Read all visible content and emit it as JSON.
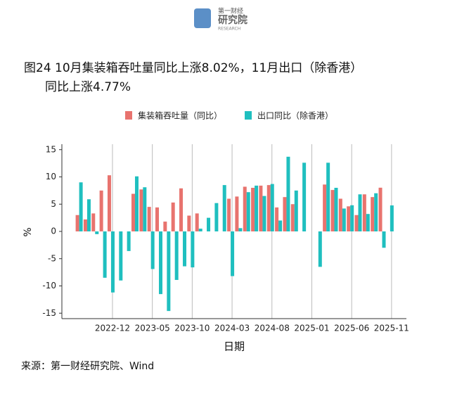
{
  "header": {
    "brand": "第一财经",
    "name": "研究院",
    "sub": "RESEARCH"
  },
  "chart_data": {
    "type": "bar",
    "title": "图24 10月集装箱吞吐量同比上涨8.02%，11月出口（除香港）",
    "title_line2": "同比上涨4.77%",
    "x_label": "日期",
    "y_label": "%",
    "source": "来源：第一财经研究院、Wind",
    "categories": [
      null,
      null,
      null,
      null,
      "2022-12",
      null,
      null,
      null,
      null,
      "2023-05",
      null,
      null,
      null,
      null,
      "2023-10",
      null,
      null,
      null,
      null,
      "2024-03",
      null,
      null,
      null,
      null,
      "2024-08",
      null,
      null,
      null,
      null,
      "2025-01",
      null,
      null,
      null,
      null,
      "2025-06",
      null,
      null,
      null,
      null,
      "2025-11"
    ],
    "series": [
      {
        "name": "集装箱吞吐量（同比）",
        "color": "#e8736e",
        "values": [
          3.0,
          2.2,
          3.3,
          7.5,
          10.3,
          null,
          null,
          6.9,
          7.7,
          4.5,
          4.4,
          1.8,
          5.3,
          7.9,
          2.9,
          3.3,
          null,
          null,
          null,
          6.0,
          6.4,
          8.2,
          8.0,
          8.4,
          8.5,
          4.4,
          6.3,
          5.0,
          null,
          null,
          null,
          8.6,
          7.6,
          6.0,
          4.6,
          3.0,
          6.8,
          6.3,
          8.02,
          null
        ]
      },
      {
        "name": "出口同比（除香港）",
        "color": "#1fbfbf",
        "values": [
          9.0,
          5.9,
          -0.5,
          -8.5,
          -11.2,
          -9.0,
          -3.6,
          10.1,
          8.1,
          -6.9,
          -11.5,
          -14.6,
          -8.9,
          -6.4,
          -6.6,
          0.5,
          2.5,
          5.2,
          8.5,
          -8.2,
          0.6,
          7.2,
          8.4,
          6.5,
          8.7,
          2.0,
          13.7,
          7.5,
          12.6,
          null,
          -6.5,
          12.6,
          8.0,
          4.2,
          4.8,
          6.8,
          3.2,
          7.0,
          -3.0,
          4.77
        ]
      }
    ],
    "ylim": [
      -16,
      16
    ],
    "yticks": [
      -15,
      -10,
      -5,
      0,
      5,
      10,
      15
    ],
    "grid": "x"
  }
}
